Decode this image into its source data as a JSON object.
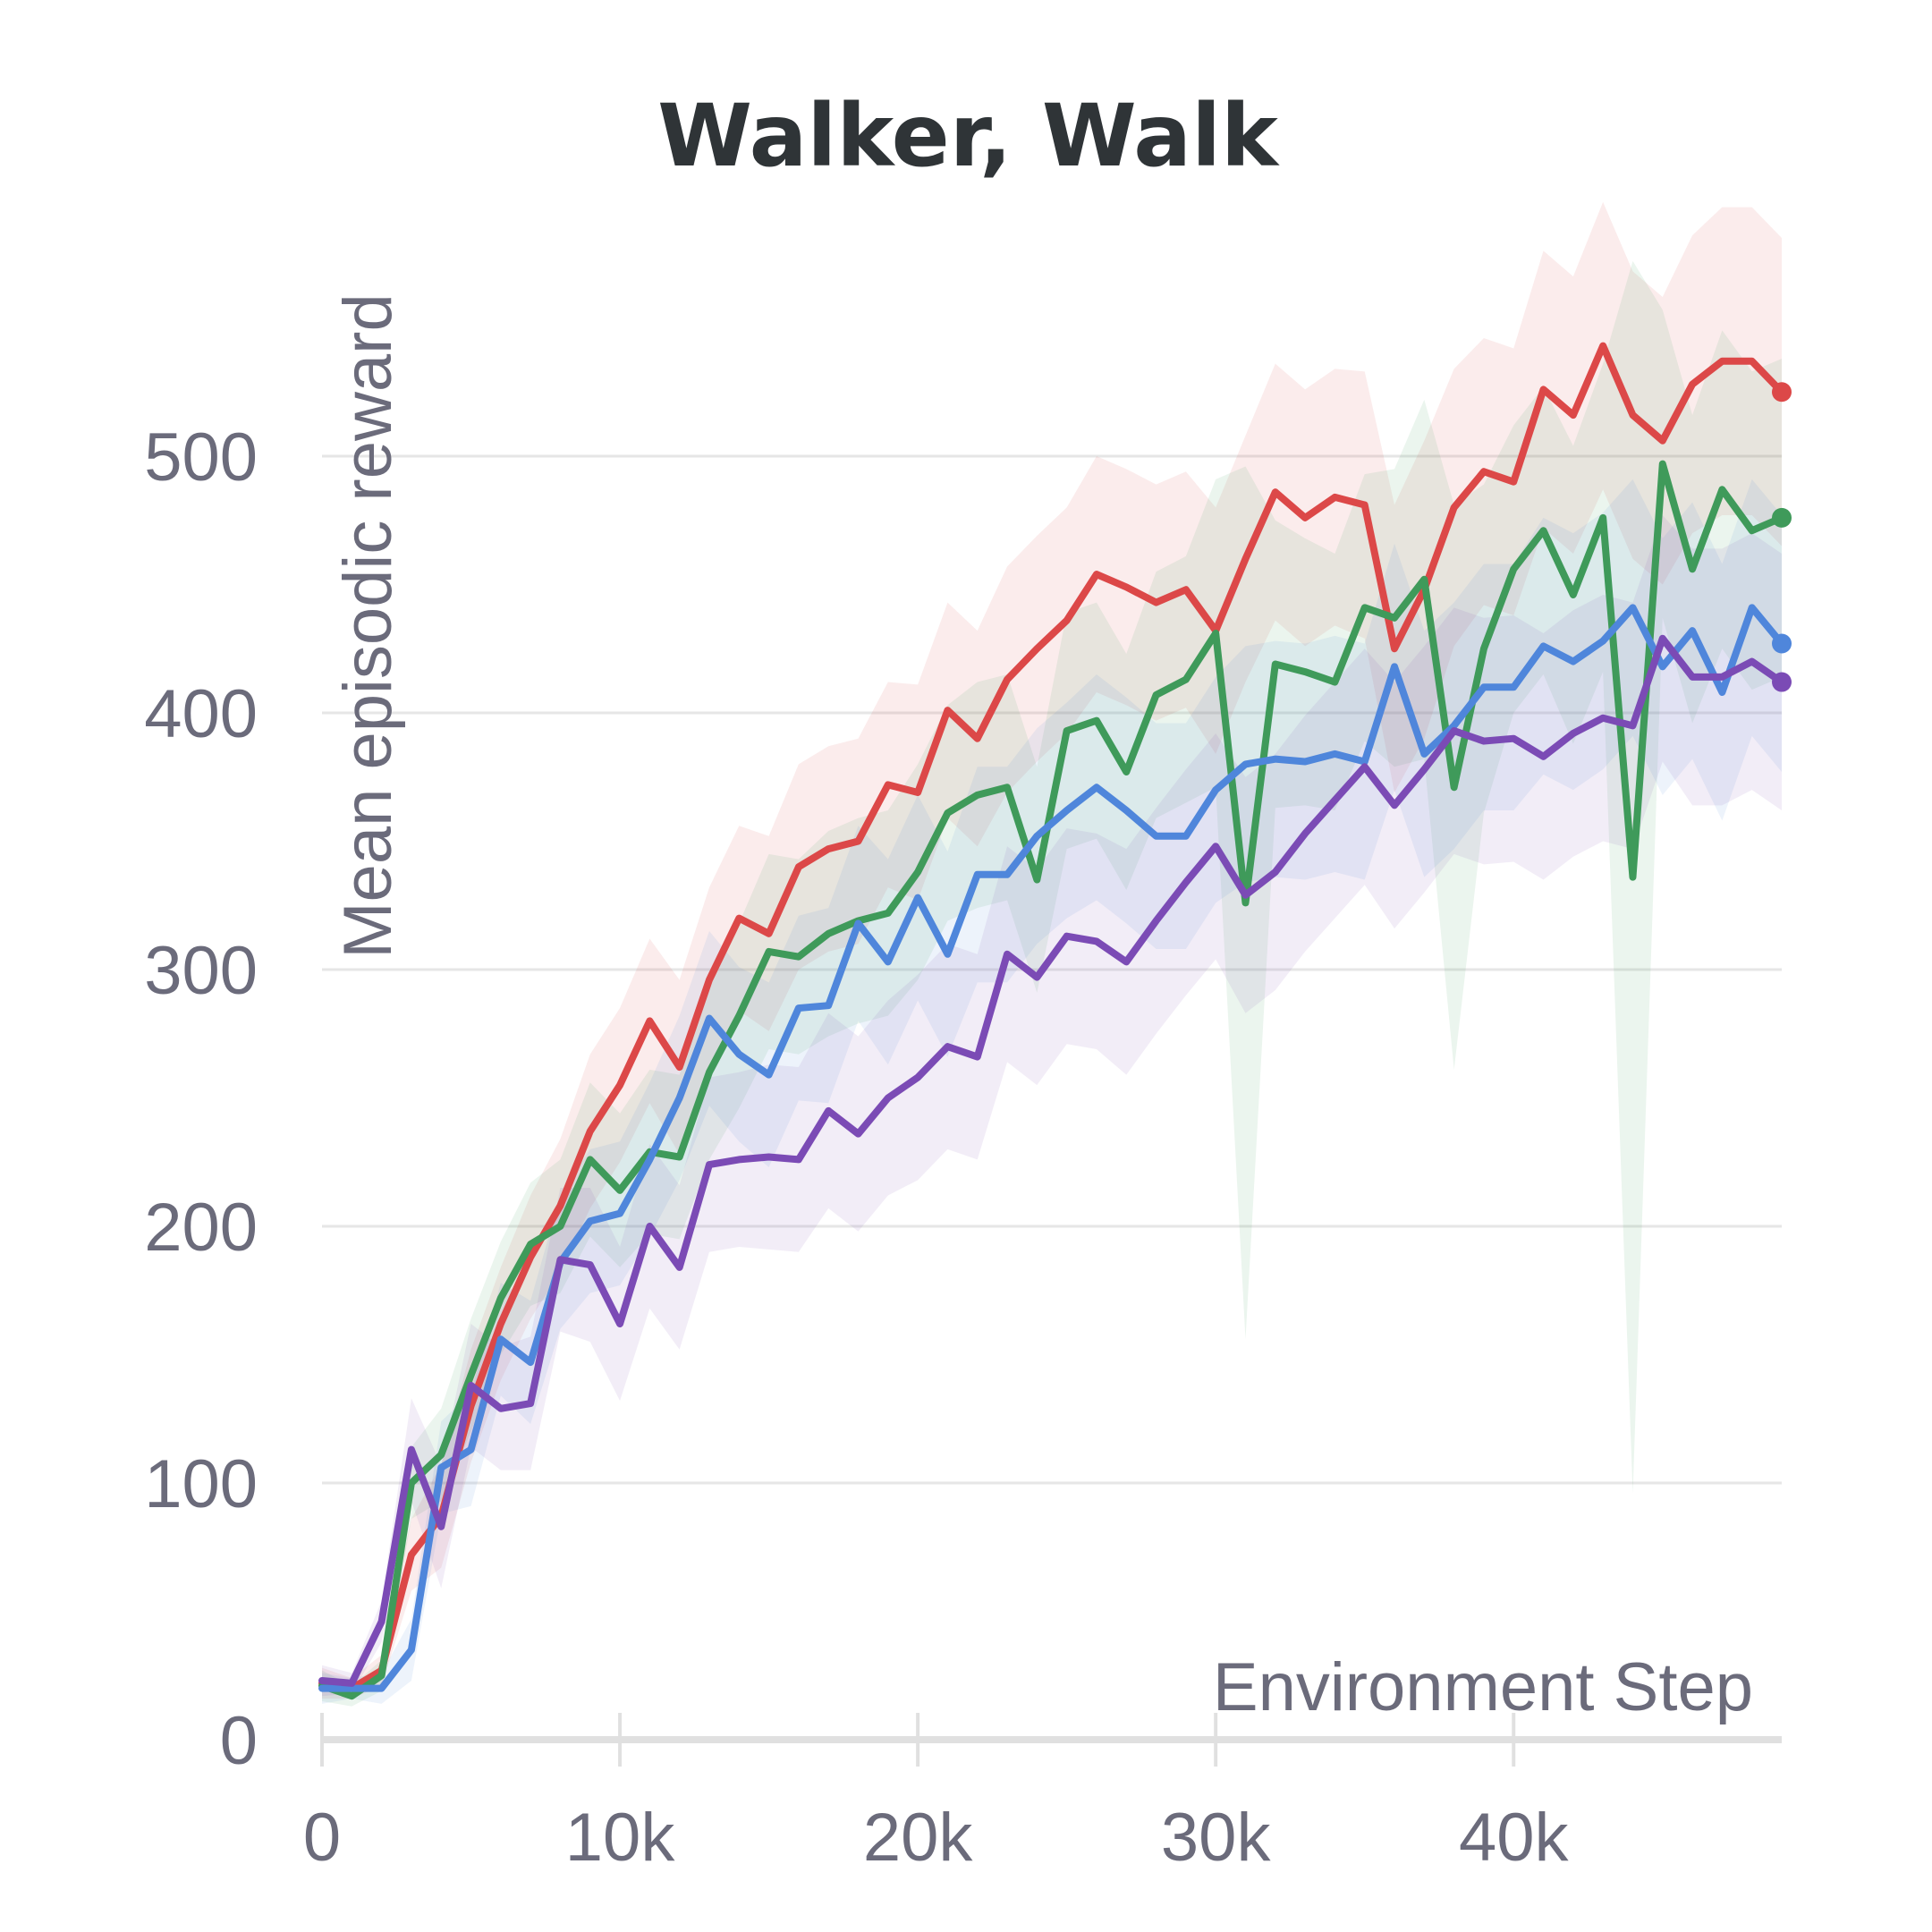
{
  "chart_data": {
    "type": "line",
    "title": "Walker, Walk",
    "xlabel": "Environment Step",
    "ylabel": "Mean episodic reward",
    "xlim": [
      0,
      49000
    ],
    "ylim": [
      0,
      550
    ],
    "x_ticks": [
      0,
      10000,
      20000,
      30000,
      40000
    ],
    "x_tick_labels": [
      "0",
      "10k",
      "20k",
      "30k",
      "40k"
    ],
    "y_ticks": [
      0,
      100,
      200,
      300,
      400,
      500
    ],
    "y_tick_labels": [
      "0",
      "100",
      "200",
      "300",
      "400",
      "500"
    ],
    "grid": true,
    "x_step": 1000,
    "series": [
      {
        "name": "red",
        "color": "#dc4848",
        "values": [
          22,
          20,
          27,
          72,
          87,
          130,
          162,
          188,
          208,
          237,
          255,
          280,
          262,
          296,
          320,
          314,
          340,
          347,
          350,
          372,
          369,
          401,
          390,
          413,
          425,
          436,
          454,
          449,
          443,
          448,
          432,
          460,
          486,
          476,
          484,
          481,
          425,
          448,
          480,
          494,
          490,
          526,
          516,
          543,
          516,
          506,
          528,
          537,
          537,
          525
        ],
        "band": [
          6,
          4,
          6,
          14,
          20,
          22,
          22,
          24,
          26,
          30,
          30,
          32,
          34,
          36,
          36,
          38,
          40,
          40,
          40,
          40,
          42,
          42,
          42,
          44,
          44,
          44,
          46,
          46,
          46,
          46,
          48,
          48,
          50,
          50,
          50,
          52,
          56,
          58,
          54,
          52,
          52,
          54,
          54,
          56,
          56,
          56,
          58,
          60,
          60,
          60
        ]
      },
      {
        "name": "green",
        "color": "#3f9a5a",
        "values": [
          21,
          17,
          25,
          100,
          111,
          142,
          172,
          193,
          200,
          226,
          214,
          229,
          227,
          260,
          282,
          307,
          305,
          314,
          319,
          322,
          338,
          361,
          368,
          371,
          335,
          393,
          397,
          377,
          407,
          413,
          431,
          326,
          419,
          416,
          412,
          441,
          437,
          452,
          371,
          425,
          456,
          471,
          446,
          476,
          336,
          497,
          456,
          487,
          471,
          476
        ],
        "band": [
          6,
          4,
          6,
          14,
          18,
          22,
          22,
          24,
          26,
          30,
          30,
          32,
          32,
          34,
          36,
          38,
          38,
          40,
          40,
          40,
          42,
          42,
          44,
          44,
          44,
          46,
          46,
          46,
          48,
          48,
          60,
          170,
          56,
          52,
          50,
          52,
          58,
          70,
          110,
          64,
          56,
          56,
          58,
          60,
          240,
          60,
          60,
          62,
          62,
          62
        ]
      },
      {
        "name": "blue",
        "color": "#4f86db",
        "values": [
          20,
          20,
          20,
          35,
          106,
          113,
          156,
          147,
          186,
          202,
          205,
          226,
          250,
          281,
          267,
          259,
          285,
          286,
          318,
          303,
          328,
          306,
          337,
          337,
          352,
          362,
          371,
          362,
          352,
          352,
          370,
          380,
          382,
          381,
          384,
          381,
          418,
          384,
          395,
          410,
          410,
          426,
          420,
          428,
          441,
          418,
          432,
          408,
          441,
          427
        ],
        "band": [
          6,
          4,
          6,
          12,
          18,
          22,
          22,
          24,
          26,
          28,
          28,
          30,
          32,
          34,
          34,
          36,
          36,
          38,
          38,
          40,
          40,
          40,
          42,
          42,
          42,
          42,
          44,
          44,
          44,
          44,
          44,
          46,
          46,
          46,
          46,
          46,
          48,
          48,
          48,
          48,
          48,
          50,
          50,
          50,
          50,
          50,
          50,
          50,
          50,
          50
        ]
      },
      {
        "name": "purple",
        "color": "#7b4bb5",
        "values": [
          23,
          22,
          46,
          113,
          83,
          138,
          129,
          131,
          187,
          185,
          162,
          200,
          184,
          224,
          226,
          227,
          226,
          245,
          236,
          250,
          258,
          270,
          266,
          306,
          297,
          313,
          311,
          303,
          319,
          334,
          348,
          329,
          338,
          353,
          366,
          379,
          364,
          378,
          393,
          389,
          390,
          383,
          392,
          398,
          395,
          429,
          414,
          414,
          420,
          412
        ],
        "band": [
          6,
          4,
          8,
          20,
          24,
          24,
          24,
          26,
          28,
          30,
          30,
          32,
          32,
          34,
          34,
          36,
          36,
          38,
          38,
          38,
          40,
          40,
          40,
          42,
          42,
          42,
          42,
          44,
          44,
          44,
          44,
          46,
          46,
          46,
          46,
          46,
          48,
          48,
          48,
          48,
          48,
          48,
          48,
          48,
          48,
          48,
          50,
          50,
          50,
          50
        ]
      }
    ]
  }
}
